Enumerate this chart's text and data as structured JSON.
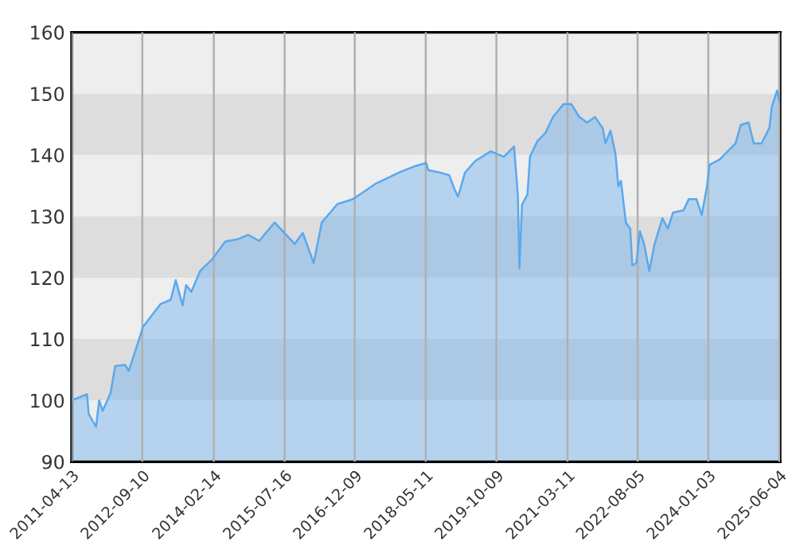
{
  "chart_data": {
    "type": "area",
    "x": [
      "2011-04-13",
      "2011-04-24",
      "2011-08-04",
      "2011-08-15",
      "2011-10-08",
      "2011-10-31",
      "2011-11-26",
      "2012-01-22",
      "2012-02-25",
      "2012-05-07",
      "2012-06-03",
      "2012-08-18",
      "2012-09-15",
      "2013-01-20",
      "2013-04-05",
      "2013-05-12",
      "2013-07-01",
      "2013-07-27",
      "2013-09-03",
      "2013-11-06",
      "2014-02-02",
      "2014-05-08",
      "2014-08-11",
      "2014-10-23",
      "2015-01-11",
      "2015-05-04",
      "2015-09-28",
      "2015-11-25",
      "2016-02-13",
      "2016-04-12",
      "2016-08-04",
      "2016-11-26",
      "2017-05-16",
      "2017-11-03",
      "2018-02-24",
      "2018-05-15",
      "2018-05-30",
      "2018-08-14",
      "2018-10-30",
      "2018-12-06",
      "2019-01-02",
      "2019-02-21",
      "2019-05-06",
      "2019-08-29",
      "2019-12-02",
      "2020-02-15",
      "2020-03-14",
      "2020-03-25",
      "2020-04-13",
      "2020-05-23",
      "2020-06-10",
      "2020-08-04",
      "2020-10-01",
      "2020-11-25",
      "2021-02-10",
      "2021-04-08",
      "2021-06-05",
      "2021-08-01",
      "2021-09-28",
      "2021-11-23",
      "2021-12-13",
      "2022-01-19",
      "2022-02-25",
      "2022-03-17",
      "2022-04-05",
      "2022-05-12",
      "2022-06-12",
      "2022-06-27",
      "2022-07-27",
      "2022-08-22",
      "2022-09-22",
      "2022-10-29",
      "2022-12-06",
      "2023-02-02",
      "2023-03-14",
      "2023-04-20",
      "2023-07-06",
      "2023-08-13",
      "2023-10-09",
      "2023-11-16",
      "2023-12-25",
      "2024-01-12",
      "2024-03-28",
      "2024-05-24",
      "2024-07-20",
      "2024-08-27",
      "2024-10-23",
      "2024-11-30",
      "2025-01-26",
      "2025-03-24",
      "2025-04-11",
      "2025-05-19",
      "2025-06-06"
    ],
    "series": [
      {
        "color": "#5aa8ee",
        "values": [
          100.3,
          100.1,
          101,
          97.8,
          95.7,
          100,
          98.3,
          101.2,
          105.6,
          105.8,
          104.8,
          110,
          112,
          115.7,
          116.4,
          119.6,
          115.5,
          118.8,
          117.7,
          121.1,
          123,
          125.9,
          126.3,
          127,
          126,
          129,
          125.5,
          127.3,
          122.4,
          129,
          132,
          132.8,
          135.4,
          137.2,
          138.2,
          138.7,
          137.5,
          137.2,
          136.7,
          134.5,
          133.2,
          137.1,
          139,
          140.6,
          139.7,
          141.4,
          133.3,
          121.5,
          131.9,
          133.6,
          139.7,
          142.3,
          143.6,
          146.2,
          148.3,
          148.3,
          146.2,
          145.3,
          146.2,
          144.4,
          141.9,
          144,
          140.1,
          134.9,
          135.8,
          128.9,
          128,
          122,
          122.4,
          127.6,
          125.4,
          121.1,
          125.4,
          129.7,
          128,
          130.6,
          131,
          132.8,
          132.8,
          130.2,
          135,
          138.4,
          139.3,
          140.6,
          141.9,
          144.9,
          145.3,
          141.9,
          141.9,
          144.4,
          147.9,
          150.5,
          148.8
        ]
      }
    ],
    "xlim": [
      "2011-04-13",
      "2025-06-10"
    ],
    "xticks": [
      "2011-04-13",
      "2012-09-10",
      "2014-02-14",
      "2015-07-16",
      "2016-12-09",
      "2018-05-11",
      "2019-10-09",
      "2021-03-11",
      "2022-08-05",
      "2024-01-03",
      "2025-06-04"
    ],
    "ylim": [
      90,
      160
    ],
    "yticks": [
      90,
      100,
      110,
      120,
      130,
      140,
      150,
      160
    ],
    "bands": [
      {
        "axis": "y",
        "from": 90,
        "to": 100,
        "color": "#eeeeee"
      },
      {
        "axis": "y",
        "from": 100,
        "to": 110,
        "color": "#dddddd"
      },
      {
        "axis": "y",
        "from": 110,
        "to": 120,
        "color": "#eeeeee"
      },
      {
        "axis": "y",
        "from": 120,
        "to": 130,
        "color": "#dddddd"
      },
      {
        "axis": "y",
        "from": 130,
        "to": 140,
        "color": "#eeeeee"
      },
      {
        "axis": "y",
        "from": 140,
        "to": 150,
        "color": "#dddddd"
      },
      {
        "axis": "y",
        "from": 150,
        "to": 160,
        "color": "#eeeeee"
      }
    ],
    "grid": "x",
    "marker": "none",
    "line_style": "solid"
  }
}
